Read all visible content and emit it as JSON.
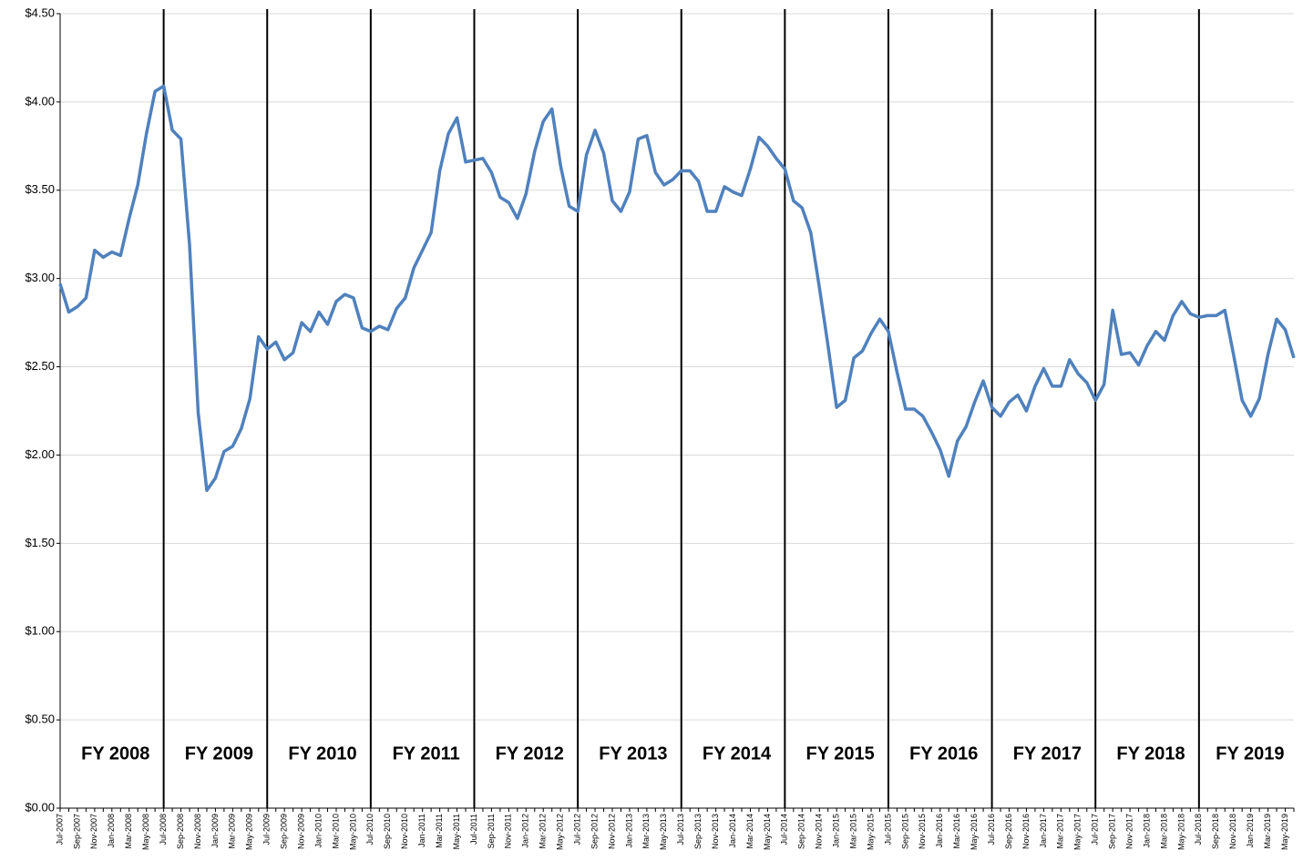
{
  "chart_data": {
    "type": "line",
    "color": "#4f81bd",
    "grid": true,
    "categories": [
      "Jul-2007",
      null,
      "Sep-2007",
      null,
      "Nov-2007",
      null,
      "Jan-2008",
      null,
      "Mar-2008",
      null,
      "May-2008",
      null,
      "Jul-2008",
      null,
      "Sep-2008",
      null,
      "Nov-2008",
      null,
      "Jan-2009",
      null,
      "Mar-2009",
      null,
      "May-2009",
      null,
      "Jul-2009",
      null,
      "Sep-2009",
      null,
      "Nov-2009",
      null,
      "Jan-2010",
      null,
      "Mar-2010",
      null,
      "May-2010",
      null,
      "Jul-2010",
      null,
      "Sep-2010",
      null,
      "Nov-2010",
      null,
      "Jan-2011",
      null,
      "Mar-2011",
      null,
      "May-2011",
      null,
      "Jul-2011",
      null,
      "Sep-2011",
      null,
      "Nov-2011",
      null,
      "Jan-2012",
      null,
      "Mar-2012",
      null,
      "May-2012",
      null,
      "Jul-2012",
      null,
      "Sep-2012",
      null,
      "Nov-2012",
      null,
      "Jan-2013",
      null,
      "Mar-2013",
      null,
      "May-2013",
      null,
      "Jul-2013",
      null,
      "Sep-2013",
      null,
      "Nov-2013",
      null,
      "Jan-2014",
      null,
      "Mar-2014",
      null,
      "May-2014",
      null,
      "Jul-2014",
      null,
      "Sep-2014",
      null,
      "Nov-2014",
      null,
      "Jan-2015",
      null,
      "Mar-2015",
      null,
      "May-2015",
      null,
      "Jul-2015",
      null,
      "Sep-2015",
      null,
      "Nov-2015",
      null,
      "Jan-2016",
      null,
      "Mar-2016",
      null,
      "May-2016",
      null,
      "Jul-2016",
      null,
      "Sep-2016",
      null,
      "Nov-2016",
      null,
      "Jan-2017",
      null,
      "Mar-2017",
      null,
      "May-2017",
      null,
      "Jul-2017",
      null,
      "Sep-2017",
      null,
      "Nov-2017",
      null,
      "Jan-2018",
      null,
      "Mar-2018",
      null,
      "May-2018",
      null,
      "Jul-2018",
      null,
      "Sep-2018",
      null,
      "Nov-2018",
      null,
      "Jan-2019",
      null,
      "Mar-2019",
      null,
      "May-2019",
      null
    ],
    "values": [
      2.97,
      2.81,
      2.84,
      2.89,
      3.16,
      3.12,
      3.15,
      3.13,
      3.34,
      3.53,
      3.82,
      4.06,
      4.09,
      3.84,
      3.79,
      3.19,
      2.24,
      1.8,
      1.87,
      2.02,
      2.05,
      2.15,
      2.32,
      2.67,
      2.6,
      2.64,
      2.54,
      2.58,
      2.75,
      2.7,
      2.81,
      2.74,
      2.87,
      2.91,
      2.89,
      2.72,
      2.7,
      2.73,
      2.71,
      2.83,
      2.89,
      3.06,
      3.16,
      3.26,
      3.61,
      3.82,
      3.91,
      3.66,
      3.67,
      3.68,
      3.6,
      3.46,
      3.43,
      3.34,
      3.48,
      3.72,
      3.89,
      3.96,
      3.64,
      3.41,
      3.38,
      3.7,
      3.84,
      3.71,
      3.44,
      3.38,
      3.49,
      3.79,
      3.81,
      3.6,
      3.53,
      3.56,
      3.61,
      3.61,
      3.55,
      3.38,
      3.38,
      3.52,
      3.49,
      3.47,
      3.62,
      3.8,
      3.75,
      3.68,
      3.62,
      3.44,
      3.4,
      3.26,
      2.95,
      2.62,
      2.27,
      2.31,
      2.55,
      2.59,
      2.69,
      2.77,
      2.7,
      2.47,
      2.26,
      2.26,
      2.22,
      2.13,
      2.03,
      1.88,
      2.08,
      2.16,
      2.3,
      2.42,
      2.27,
      2.22,
      2.3,
      2.34,
      2.25,
      2.39,
      2.49,
      2.39,
      2.39,
      2.54,
      2.46,
      2.41,
      2.31,
      2.4,
      2.82,
      2.57,
      2.58,
      2.51,
      2.62,
      2.7,
      2.65,
      2.79,
      2.87,
      2.8,
      2.78,
      2.79,
      2.79,
      2.82,
      2.57,
      2.31,
      2.22,
      2.32,
      2.57,
      2.77,
      2.71,
      2.55
    ],
    "ylim": [
      0,
      4.5
    ],
    "yticks": [
      {
        "value": 0,
        "label": "$0.00"
      },
      {
        "value": 0.5,
        "label": "$0.50"
      },
      {
        "value": 1,
        "label": "$1.00"
      },
      {
        "value": 1.5,
        "label": "$1.50"
      },
      {
        "value": 2,
        "label": "$2.00"
      },
      {
        "value": 2.5,
        "label": "$2.50"
      },
      {
        "value": 3,
        "label": "$3.00"
      },
      {
        "value": 3.5,
        "label": "$3.50"
      },
      {
        "value": 4,
        "label": "$4.00"
      },
      {
        "value": 4.5,
        "label": "$4.50"
      }
    ],
    "annotations": [
      "FY 2008",
      "FY 2009",
      "FY 2010",
      "FY 2011",
      "FY 2012",
      "FY 2013",
      "FY 2014",
      "FY 2015",
      "FY 2016",
      "FY 2017",
      "FY 2018",
      "FY 2019"
    ]
  }
}
